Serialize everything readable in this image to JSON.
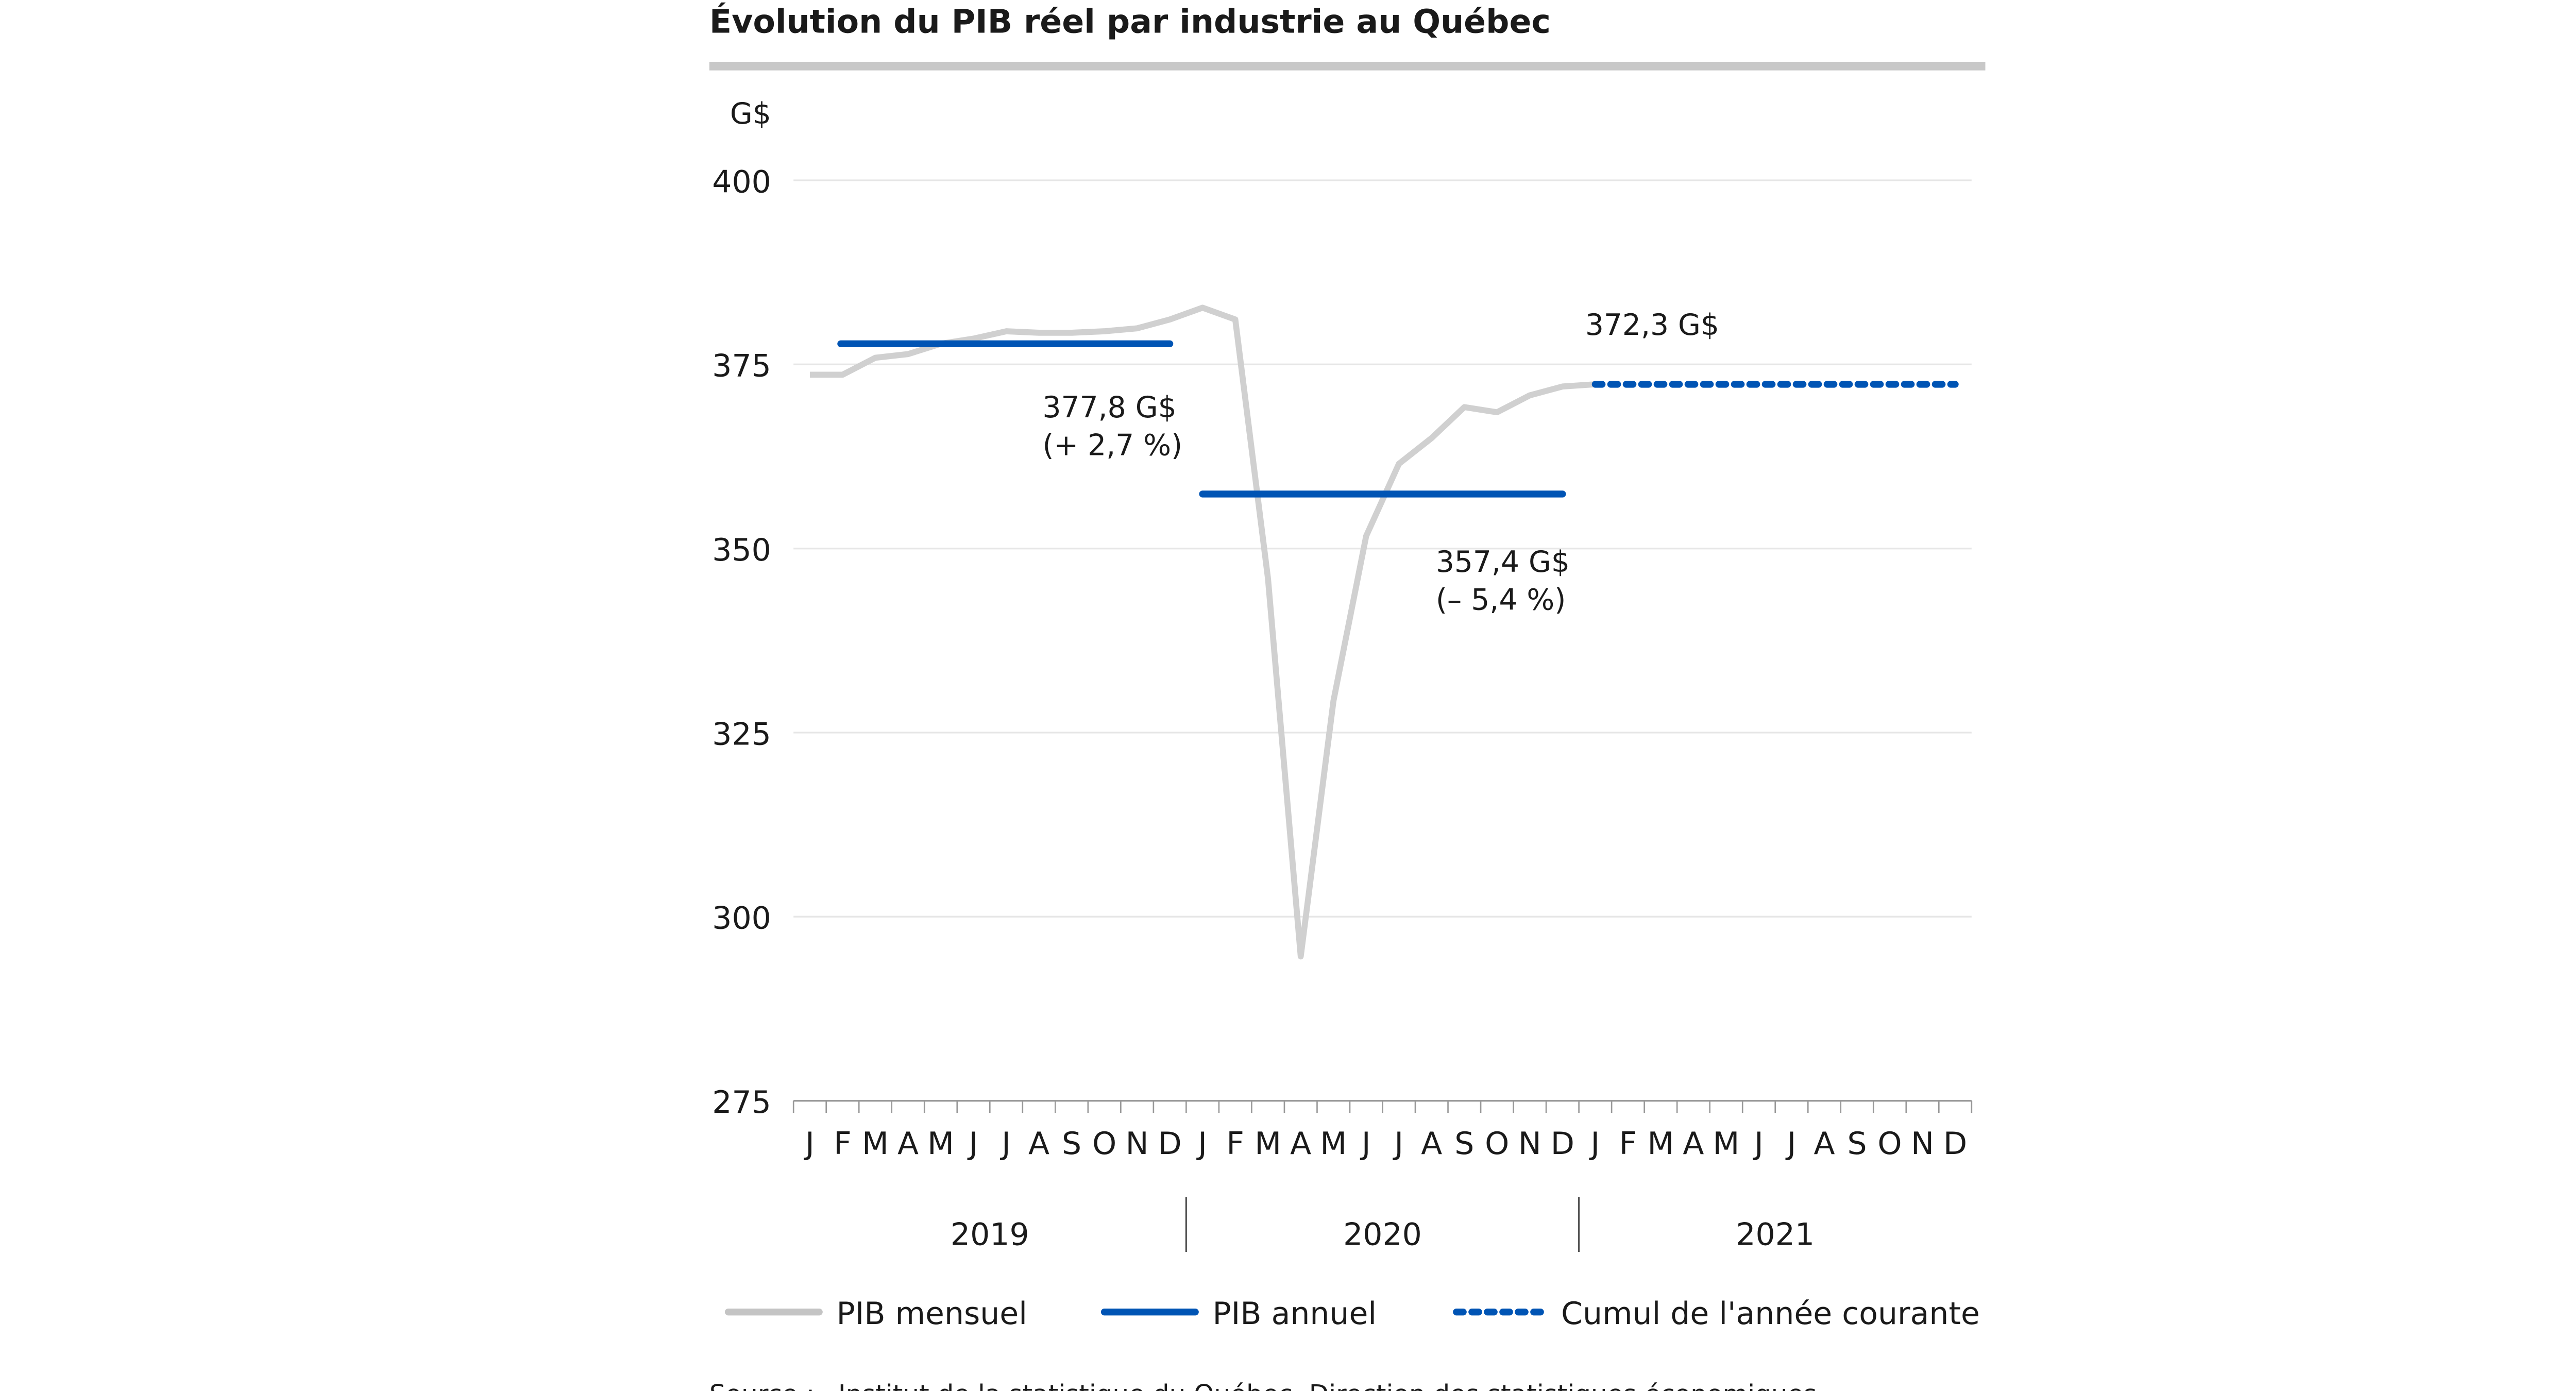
{
  "chart_data": {
    "type": "line",
    "title": "Évolution du PIB réel par industrie au Québec",
    "ylabel": "G$",
    "ylim": [
      275,
      400
    ],
    "yticks": [
      "400",
      "375",
      "350",
      "325",
      "300",
      "275"
    ],
    "grid": true,
    "month_labels": [
      "J",
      "F",
      "M",
      "A",
      "M",
      "J",
      "J",
      "A",
      "S",
      "O",
      "N",
      "D",
      "J",
      "F",
      "M",
      "A",
      "M",
      "J",
      "J",
      "A",
      "S",
      "O",
      "N",
      "D",
      "J",
      "F",
      "M",
      "A",
      "M",
      "J",
      "J",
      "A",
      "S",
      "O",
      "N",
      "D"
    ],
    "years": [
      "2019",
      "2020",
      "2021"
    ],
    "series": [
      {
        "name": "PIB mensuel",
        "color": "#d0d0d0",
        "values": [
          373.6,
          373.6,
          375.9,
          376.4,
          377.8,
          378.5,
          379.5,
          379.3,
          379.3,
          379.5,
          379.9,
          381.1,
          382.7,
          381.1,
          345.9,
          294.6,
          329.3,
          351.7,
          361.5,
          365.0,
          369.2,
          368.5,
          370.8,
          372.0,
          372.3
        ]
      },
      {
        "name": "PIB annuel",
        "color": "#0054b4",
        "segments": [
          {
            "year": "2019",
            "value": 377.8
          },
          {
            "year": "2020",
            "value": 357.4
          }
        ]
      },
      {
        "name": "Cumul de l'année courante",
        "color": "#0054b4",
        "style": "dotted",
        "segments": [
          {
            "year": "2021",
            "value": 372.3
          }
        ]
      }
    ],
    "annotations": [
      {
        "line1": "377,8 G$",
        "line2": "(+ 2,7 %)"
      },
      {
        "line1": "357,4 G$",
        "line2": "(– 5,4 %)"
      },
      {
        "line1": "372,3 G$",
        "line2": ""
      }
    ],
    "legend_position": "bottom"
  },
  "source": {
    "label": "Source :",
    "text": "Institut de la statistique du Québec, Direction des statistiques économiques."
  }
}
